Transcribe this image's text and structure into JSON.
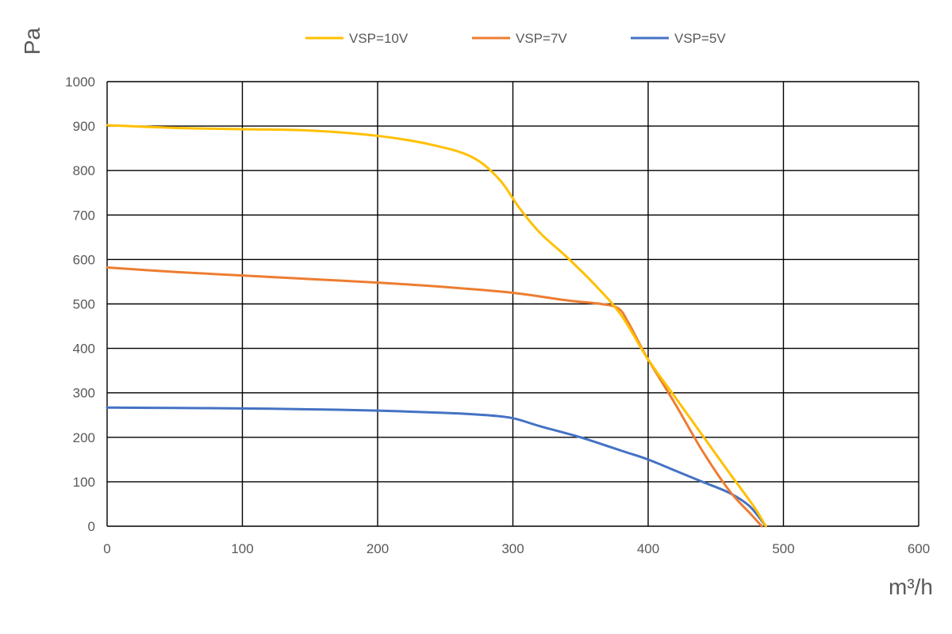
{
  "chart_data": {
    "type": "line",
    "title": "",
    "xlabel": "m³/h",
    "ylabel": "Pa",
    "xlim": [
      0,
      600
    ],
    "ylim": [
      0,
      1000
    ],
    "x_ticks": [
      "0",
      "100",
      "200",
      "300",
      "400",
      "500",
      "600"
    ],
    "y_ticks": [
      "0",
      "100",
      "200",
      "300",
      "400",
      "500",
      "600",
      "700",
      "800",
      "900",
      "1000"
    ],
    "grid": true,
    "legend_position": "top",
    "series": [
      {
        "name": "VSP=10V",
        "color": "#FFC000",
        "x": [
          0,
          50,
          100,
          150,
          200,
          240,
          270,
          290,
          305,
          320,
          340,
          360,
          380,
          400,
          420,
          440,
          460,
          478,
          487
        ],
        "y": [
          902,
          896,
          893,
          890,
          878,
          858,
          830,
          780,
          715,
          660,
          605,
          545,
          475,
          375,
          290,
          205,
          120,
          45,
          0
        ]
      },
      {
        "name": "VSP=7V",
        "color": "#ED7D31",
        "x": [
          0,
          50,
          100,
          150,
          200,
          250,
          300,
          340,
          365,
          378,
          385,
          392,
          400,
          420,
          440,
          460,
          475,
          484
        ],
        "y": [
          582,
          572,
          564,
          556,
          548,
          538,
          525,
          508,
          500,
          490,
          460,
          420,
          375,
          275,
          170,
          80,
          30,
          0
        ]
      },
      {
        "name": "VSP=5V",
        "color": "#4472C4",
        "x": [
          0,
          50,
          100,
          150,
          200,
          250,
          280,
          300,
          320,
          350,
          380,
          400,
          420,
          440,
          460,
          475,
          487
        ],
        "y": [
          267,
          266,
          265,
          263,
          260,
          255,
          250,
          243,
          225,
          200,
          170,
          150,
          125,
          100,
          75,
          45,
          0
        ]
      }
    ]
  }
}
